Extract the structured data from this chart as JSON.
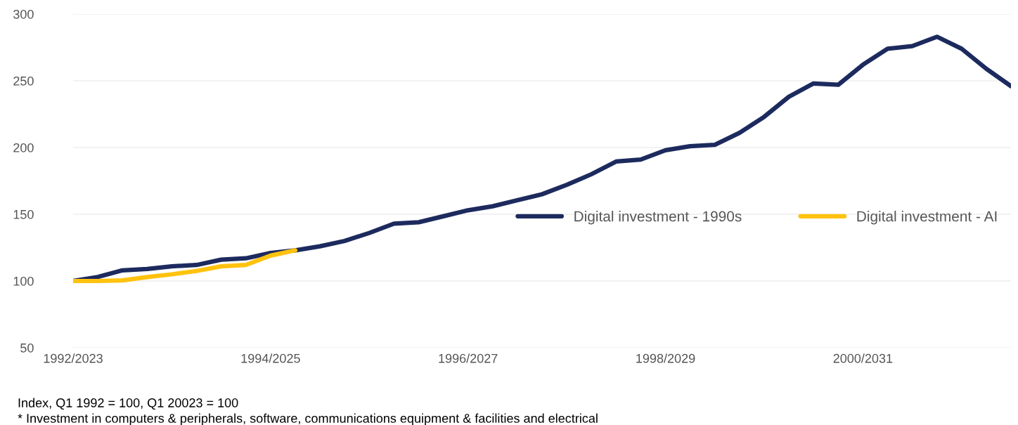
{
  "chart_data": {
    "type": "line",
    "categories": [
      "1992/2023",
      null,
      null,
      null,
      null,
      null,
      null,
      null,
      "1994/2025",
      null,
      null,
      null,
      null,
      null,
      null,
      null,
      "1996/2027",
      null,
      null,
      null,
      null,
      null,
      null,
      null,
      "1998/2029",
      null,
      null,
      null,
      null,
      null,
      null,
      null,
      "2000/2031",
      null,
      null,
      null,
      null,
      null,
      null
    ],
    "series": [
      {
        "name": "Digital investment - 1990s",
        "color": "#1c2a5e",
        "values": [
          100,
          103,
          108,
          109,
          111,
          112,
          116,
          117,
          121,
          123,
          126,
          130,
          136,
          143,
          144,
          148.5,
          153,
          156,
          160.5,
          165,
          172,
          180,
          189.5,
          191,
          198,
          201,
          202,
          211,
          223,
          238,
          248,
          247,
          262,
          274,
          276,
          283,
          274,
          259,
          246
        ]
      },
      {
        "name": "Digital investment - AI",
        "color": "#ffc20e",
        "values": [
          100,
          100,
          100.5,
          103,
          105,
          107.5,
          111,
          112,
          119,
          123,
          null,
          null,
          null,
          null,
          null,
          null,
          null,
          null,
          null,
          null,
          null,
          null,
          null,
          null,
          null,
          null,
          null,
          null,
          null,
          null,
          null,
          null,
          null,
          null,
          null,
          null,
          null,
          null,
          null
        ]
      }
    ],
    "ylim": [
      50,
      300
    ],
    "yticks": [
      50,
      100,
      150,
      200,
      250,
      300
    ],
    "grid": "y",
    "legend": "right",
    "marker": "none",
    "line_style": "solid",
    "annotations": [
      "Index, Q1 1992 = 100, Q1 20023 = 100",
      "* Investment in computers & peripherals, software, communications equipment & facilities and electrical"
    ]
  }
}
